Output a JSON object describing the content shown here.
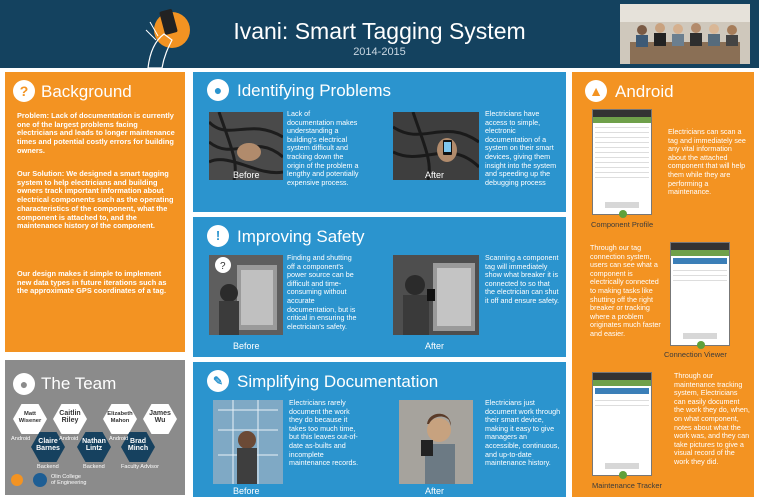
{
  "header": {
    "title": "Ivani: Smart Tagging System",
    "subtitle": "2014-2015"
  },
  "background": {
    "title": "Background",
    "problem": "Problem: Lack of documentation is currently one of the largest problems facing electricians and leads to longer maintenance times and potential costly errors for building owners.",
    "solution_1": "Our Solution: We designed a",
    "solution_bold": "smart tagging system",
    "solution_2": "to help electricians and building owners track important information about electrical components such as the operating characteristics of the component, what the component is attached to, and the maintenance history of the component.",
    "design": "Our design makes it simple to implement new data types in future iterations such as the approximate GPS coordinates of a tag."
  },
  "team": {
    "title": "The Team",
    "members": [
      {
        "name": "Matt\nWisener",
        "role": "Android"
      },
      {
        "name": "Caitlin\nRiley",
        "role": "Android"
      },
      {
        "name": "Claire\nBarnes",
        "role": "Backend"
      },
      {
        "name": "Nathan\nLintz",
        "role": "Backend"
      },
      {
        "name": "Elizabeth\nMahon",
        "role": "Android"
      },
      {
        "name": "Brad\nMinch",
        "role": "Faculty Advisor"
      },
      {
        "name": "James\nWu",
        "role": ""
      }
    ],
    "roles": {
      "android_1": "Android",
      "android_2": "Android",
      "android_3": "Android",
      "backend_1": "Backend",
      "backend_2": "Backend",
      "advisor": "Faculty Advisor"
    },
    "org": "Olin College\nof Engineering"
  },
  "identifying": {
    "title": "Identifying Problems",
    "left_text": "Lack of documentation makes understanding a building's electrical system difficult and tracking down the origin of the problem a lengthy and potentially expensive process.",
    "right_text": "Electricians have access to simple, electronic documentation of a system on their smart devices, giving them insight into the system and speeding up the debugging process",
    "before": "Before",
    "after": "After"
  },
  "safety": {
    "title": "Improving Safety",
    "left_text": "Finding and shutting off a component's power source can be difficult and time-consuming without accurate documentation, but is critical in ensuring the electrician's safety.",
    "right_text": "Scanning a component tag will immediately show what breaker it is connected to so that the electrician can shut it off and ensure safety.",
    "before": "Before",
    "after": "After"
  },
  "documentation": {
    "title": "Simplifying Documentation",
    "left_text": "Electricians rarely document the work they do because it takes too much time, but this leaves out-of-date as-builts and incomplete maintenance records.",
    "right_text": "Electricians just document work through their smart device, making it easy to give managers an accessible, continuous, and up-to-date maintenance history.",
    "before": "Before",
    "after": "After"
  },
  "android": {
    "title": "Android",
    "profile_text": "Electricians can scan a tag and immediately see any vital information about the attached component that will help them while they are performing a maintenance.",
    "profile_caption": "Component Profile",
    "connection_text": "Through our tag connection system, users can see what a component is electrically connected to making tasks like shutting off the right breaker or tracking where a problem originates much faster and easier.",
    "connection_caption": "Connection Viewer",
    "tracker_text": "Through our maintenance tracking system, Electricians can easily document the work they do, when, on what component, notes about what the work was, and they can take pictures to give a visual record of the work they did.",
    "tracker_caption": "Maintenance Tracker"
  },
  "colors": {
    "header": "#14425f",
    "orange": "#f39322",
    "blue": "#2b94ce",
    "grey": "#8b8b8b"
  }
}
